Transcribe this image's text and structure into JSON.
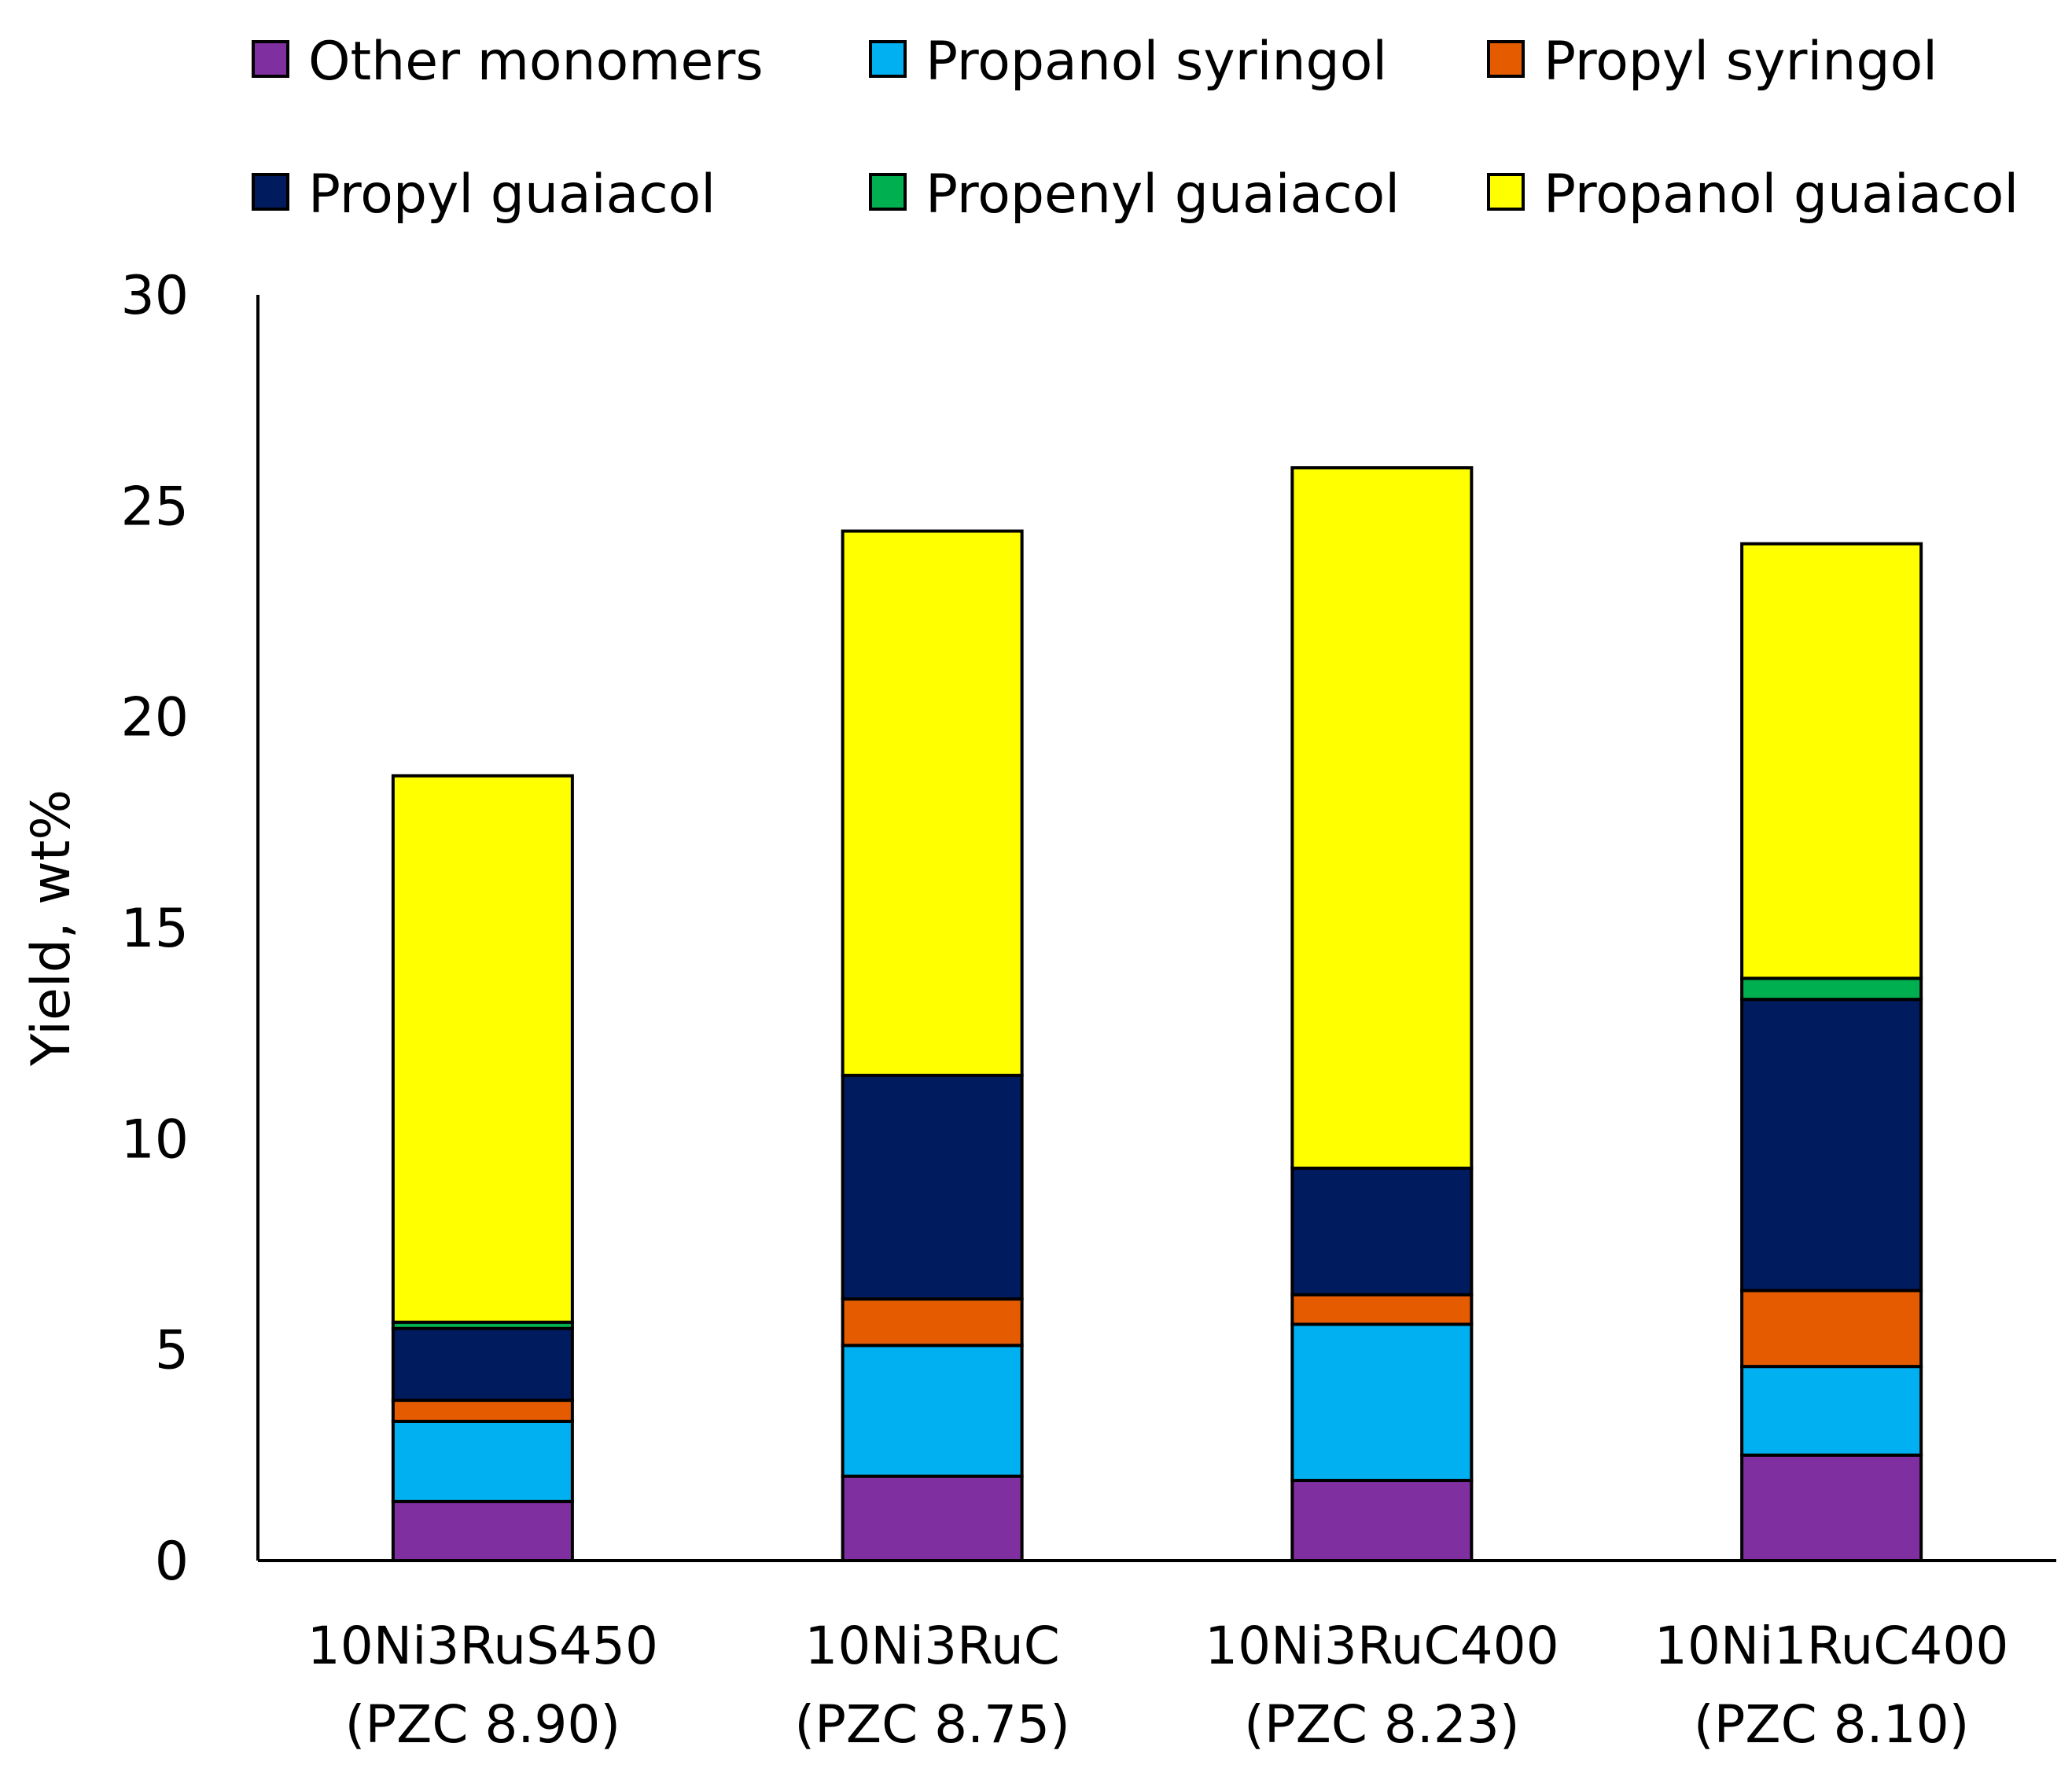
{
  "chart_data": {
    "type": "stacked-bar",
    "title": "",
    "xlabel": "",
    "ylabel": "Yield, wt%",
    "ylim": [
      0,
      30
    ],
    "yticks": [
      0,
      5,
      10,
      15,
      20,
      25,
      30
    ],
    "grid": false,
    "legend_position": "top",
    "categories": [
      {
        "line1": "10Ni3RuS450",
        "line2": "(PZC 8.90)"
      },
      {
        "line1": "10Ni3RuC",
        "line2": "(PZC 8.75)"
      },
      {
        "line1": "10Ni3RuC400",
        "line2": "(PZC 8.23)"
      },
      {
        "line1": "10Ni1RuC400",
        "line2": "(PZC 8.10)"
      }
    ],
    "series": [
      {
        "name": "Other monomers",
        "color": "#7F2FA0",
        "values": [
          1.4,
          2.0,
          1.9,
          2.5
        ]
      },
      {
        "name": "Propanol syringol",
        "color": "#00B0F0",
        "values": [
          1.9,
          3.1,
          3.7,
          2.1
        ]
      },
      {
        "name": "Propyl syringol",
        "color": "#E55C00",
        "values": [
          0.5,
          1.1,
          0.7,
          1.8
        ]
      },
      {
        "name": "Propyl guaiacol",
        "color": "#001B5E",
        "values": [
          1.7,
          5.3,
          3.0,
          6.9
        ]
      },
      {
        "name": "Propenyl guaiacol",
        "color": "#00B050",
        "values": [
          0.15,
          0.0,
          0.0,
          0.5
        ]
      },
      {
        "name": "Propanol guaiacol",
        "color": "#FFFF00",
        "values": [
          12.95,
          12.9,
          16.6,
          10.3
        ]
      }
    ]
  }
}
